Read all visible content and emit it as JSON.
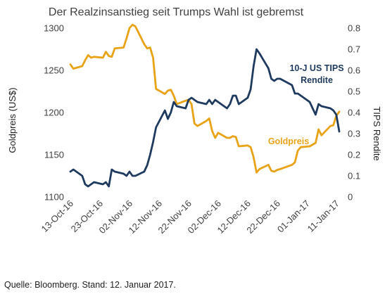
{
  "chart_data": {
    "type": "line",
    "title": "Der Realzinsanstieg seit Trumps Wahl ist gebremst",
    "x_tick_labels": [
      "13-Oct-16",
      "23-Oct-16",
      "02-Nov-16",
      "12-Nov-16",
      "22-Nov-16",
      "02-Dec-16",
      "12-Dec-16",
      "22-Dec-16",
      "01-Jan-17",
      "11-Jan-17"
    ],
    "x_range": [
      "2016-10-13",
      "2017-01-12"
    ],
    "y_left": {
      "label": "Goldpreis (US$)",
      "range": [
        1100,
        1300
      ],
      "ticks": [
        1100,
        1150,
        1200,
        1250,
        1300
      ]
    },
    "y_right": {
      "label": "TIPS Rendite",
      "range": [
        0,
        0.8
      ],
      "ticks": [
        "0",
        "0.1",
        "0.2",
        "0.3",
        "0.4",
        "0.5",
        "0.6",
        "0.7",
        "0.8"
      ]
    },
    "grid": false,
    "series": [
      {
        "name": "Goldpreis",
        "axis": "left",
        "color": "#E8A317",
        "points": [
          [
            "2016-10-13",
            1257
          ],
          [
            "2016-10-14",
            1252
          ],
          [
            "2016-10-17",
            1255
          ],
          [
            "2016-10-18",
            1262
          ],
          [
            "2016-10-19",
            1268
          ],
          [
            "2016-10-20",
            1265
          ],
          [
            "2016-10-21",
            1266
          ],
          [
            "2016-10-24",
            1265
          ],
          [
            "2016-10-25",
            1272
          ],
          [
            "2016-10-26",
            1267
          ],
          [
            "2016-10-27",
            1266
          ],
          [
            "2016-10-28",
            1276
          ],
          [
            "2016-10-31",
            1277
          ],
          [
            "2016-11-01",
            1288
          ],
          [
            "2016-11-02",
            1300
          ],
          [
            "2016-11-03",
            1304
          ],
          [
            "2016-11-04",
            1302
          ],
          [
            "2016-11-07",
            1281
          ],
          [
            "2016-11-08",
            1276
          ],
          [
            "2016-11-09",
            1277
          ],
          [
            "2016-11-10",
            1265
          ],
          [
            "2016-11-11",
            1228
          ],
          [
            "2016-11-14",
            1222
          ],
          [
            "2016-11-15",
            1226
          ],
          [
            "2016-11-16",
            1227
          ],
          [
            "2016-11-17",
            1220
          ],
          [
            "2016-11-18",
            1210
          ],
          [
            "2016-11-21",
            1214
          ],
          [
            "2016-11-22",
            1215
          ],
          [
            "2016-11-23",
            1210
          ],
          [
            "2016-11-24",
            1187
          ],
          [
            "2016-11-25",
            1184
          ],
          [
            "2016-11-28",
            1190
          ],
          [
            "2016-11-29",
            1193
          ],
          [
            "2016-11-30",
            1178
          ],
          [
            "2016-12-01",
            1170
          ],
          [
            "2016-12-02",
            1176
          ],
          [
            "2016-12-05",
            1170
          ],
          [
            "2016-12-06",
            1170
          ],
          [
            "2016-12-07",
            1172
          ],
          [
            "2016-12-08",
            1171
          ],
          [
            "2016-12-09",
            1160
          ],
          [
            "2016-12-12",
            1161
          ],
          [
            "2016-12-13",
            1159
          ],
          [
            "2016-12-14",
            1147
          ],
          [
            "2016-12-15",
            1129
          ],
          [
            "2016-12-16",
            1133
          ],
          [
            "2016-12-19",
            1138
          ],
          [
            "2016-12-20",
            1131
          ],
          [
            "2016-12-21",
            1130
          ],
          [
            "2016-12-22",
            1132
          ],
          [
            "2016-12-23",
            1133
          ],
          [
            "2016-12-27",
            1138
          ],
          [
            "2016-12-28",
            1141
          ],
          [
            "2016-12-29",
            1155
          ],
          [
            "2016-12-30",
            1159
          ],
          [
            "2017-01-02",
            1160
          ],
          [
            "2017-01-03",
            1162
          ],
          [
            "2017-01-04",
            1164
          ],
          [
            "2017-01-05",
            1180
          ],
          [
            "2017-01-06",
            1173
          ],
          [
            "2017-01-09",
            1184
          ],
          [
            "2017-01-10",
            1185
          ],
          [
            "2017-01-11",
            1196
          ],
          [
            "2017-01-12",
            1201
          ]
        ]
      },
      {
        "name": "10-J US TIPS Rendite",
        "axis": "right",
        "color": "#1F3A5F",
        "points": [
          [
            "2016-10-13",
            0.12
          ],
          [
            "2016-10-14",
            0.13
          ],
          [
            "2016-10-17",
            0.1
          ],
          [
            "2016-10-18",
            0.06
          ],
          [
            "2016-10-19",
            0.05
          ],
          [
            "2016-10-20",
            0.06
          ],
          [
            "2016-10-21",
            0.07
          ],
          [
            "2016-10-24",
            0.06
          ],
          [
            "2016-10-25",
            0.07
          ],
          [
            "2016-10-26",
            0.05
          ],
          [
            "2016-10-27",
            0.13
          ],
          [
            "2016-10-28",
            0.12
          ],
          [
            "2016-10-31",
            0.11
          ],
          [
            "2016-11-01",
            0.1
          ],
          [
            "2016-11-02",
            0.12
          ],
          [
            "2016-11-03",
            0.1
          ],
          [
            "2016-11-04",
            0.1
          ],
          [
            "2016-11-07",
            0.12
          ],
          [
            "2016-11-08",
            0.15
          ],
          [
            "2016-11-09",
            0.2
          ],
          [
            "2016-11-10",
            0.26
          ],
          [
            "2016-11-11",
            0.33
          ],
          [
            "2016-11-14",
            0.41
          ],
          [
            "2016-11-15",
            0.37
          ],
          [
            "2016-11-16",
            0.4
          ],
          [
            "2016-11-17",
            0.45
          ],
          [
            "2016-11-18",
            0.43
          ],
          [
            "2016-11-21",
            0.42
          ],
          [
            "2016-11-22",
            0.46
          ],
          [
            "2016-11-23",
            0.47
          ],
          [
            "2016-11-24",
            0.46
          ],
          [
            "2016-11-25",
            0.45
          ],
          [
            "2016-11-28",
            0.44
          ],
          [
            "2016-11-29",
            0.46
          ],
          [
            "2016-11-30",
            0.44
          ],
          [
            "2016-12-01",
            0.46
          ],
          [
            "2016-12-02",
            0.45
          ],
          [
            "2016-12-05",
            0.42
          ],
          [
            "2016-12-06",
            0.44
          ],
          [
            "2016-12-07",
            0.48
          ],
          [
            "2016-12-08",
            0.48
          ],
          [
            "2016-12-09",
            0.44
          ],
          [
            "2016-12-12",
            0.47
          ],
          [
            "2016-12-13",
            0.51
          ],
          [
            "2016-12-14",
            0.62
          ],
          [
            "2016-12-15",
            0.7
          ],
          [
            "2016-12-16",
            0.68
          ],
          [
            "2016-12-19",
            0.61
          ],
          [
            "2016-12-20",
            0.56
          ],
          [
            "2016-12-21",
            0.55
          ],
          [
            "2016-12-22",
            0.56
          ],
          [
            "2016-12-23",
            0.56
          ],
          [
            "2016-12-27",
            0.53
          ],
          [
            "2016-12-28",
            0.49
          ],
          [
            "2016-12-29",
            0.49
          ],
          [
            "2016-12-30",
            0.48
          ],
          [
            "2017-01-02",
            0.45
          ],
          [
            "2017-01-03",
            0.42
          ],
          [
            "2017-01-04",
            0.39
          ],
          [
            "2017-01-05",
            0.44
          ],
          [
            "2017-01-06",
            0.43
          ],
          [
            "2017-01-09",
            0.42
          ],
          [
            "2017-01-10",
            0.41
          ],
          [
            "2017-01-11",
            0.39
          ],
          [
            "2017-01-12",
            0.31
          ]
        ]
      }
    ],
    "annotations": [
      {
        "series": "10-J US TIPS Rendite",
        "lines": [
          "10-J US TIPS",
          "Rendite"
        ]
      },
      {
        "series": "Goldpreis",
        "lines": [
          "Goldpreis"
        ]
      }
    ]
  },
  "source": "Quelle: Bloomberg. Stand: 12. Januar 2017."
}
